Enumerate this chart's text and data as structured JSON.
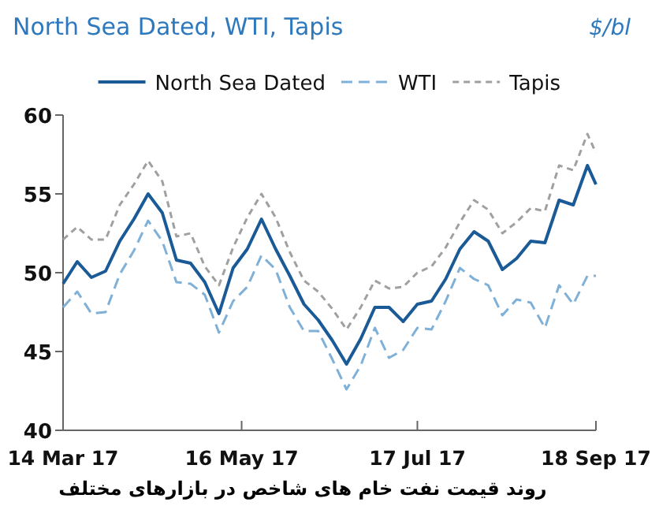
{
  "chart_data": {
    "type": "line",
    "title": "North Sea Dated, WTI, Tapis",
    "annotations": [
      "$/bl",
      "روند قیمت نفت خام های شاخص در بازارهای مختلف"
    ],
    "x": [
      "2017-03-14",
      "2017-03-19",
      "2017-03-24",
      "2017-03-29",
      "2017-04-03",
      "2017-04-08",
      "2017-04-13",
      "2017-04-18",
      "2017-04-23",
      "2017-04-28",
      "2017-05-03",
      "2017-05-08",
      "2017-05-13",
      "2017-05-18",
      "2017-05-23",
      "2017-05-28",
      "2017-06-02",
      "2017-06-07",
      "2017-06-12",
      "2017-06-17",
      "2017-06-22",
      "2017-06-27",
      "2017-07-02",
      "2017-07-07",
      "2017-07-12",
      "2017-07-17",
      "2017-07-22",
      "2017-07-27",
      "2017-08-01",
      "2017-08-06",
      "2017-08-11",
      "2017-08-16",
      "2017-08-21",
      "2017-08-26",
      "2017-08-31",
      "2017-09-05",
      "2017-09-10",
      "2017-09-15",
      "2017-09-18"
    ],
    "series": [
      {
        "name": "North Sea Dated",
        "color": "#1a5a96",
        "line_style": "solid",
        "values": [
          49.3,
          50.7,
          49.7,
          50.1,
          52.0,
          53.4,
          55.0,
          53.8,
          50.8,
          50.6,
          49.4,
          47.4,
          50.3,
          51.5,
          53.4,
          51.5,
          49.8,
          48.0,
          47.0,
          45.7,
          44.2,
          45.8,
          47.8,
          47.8,
          46.9,
          48.0,
          48.2,
          49.6,
          51.5,
          52.6,
          52.0,
          50.2,
          50.9,
          52.0,
          51.9,
          54.6,
          54.3,
          56.8,
          55.6
        ]
      },
      {
        "name": "WTI",
        "color": "#7fb0d8",
        "line_style": "dashed",
        "values": [
          47.8,
          48.8,
          47.4,
          47.5,
          49.9,
          51.4,
          53.3,
          52.0,
          49.4,
          49.3,
          48.6,
          46.2,
          48.2,
          49.1,
          51.1,
          50.2,
          47.8,
          46.3,
          46.3,
          44.5,
          42.6,
          44.1,
          46.5,
          44.6,
          45.1,
          46.5,
          46.4,
          48.2,
          50.3,
          49.6,
          49.2,
          47.3,
          48.3,
          48.1,
          46.5,
          49.2,
          48.0,
          49.8,
          49.8
        ]
      },
      {
        "name": "Tapis",
        "color": "#a0a0a0",
        "line_style": "dotted",
        "values": [
          52.1,
          52.9,
          52.1,
          52.1,
          54.3,
          55.6,
          57.1,
          55.8,
          52.3,
          52.5,
          50.4,
          49.2,
          51.6,
          53.5,
          55.0,
          53.5,
          51.3,
          49.5,
          48.8,
          47.7,
          46.4,
          47.8,
          49.5,
          49.0,
          49.1,
          50.0,
          50.4,
          51.6,
          53.2,
          54.6,
          54.0,
          52.5,
          53.2,
          54.1,
          53.9,
          56.8,
          56.5,
          58.8,
          57.6
        ]
      }
    ],
    "xlim": [
      "2017-03-14",
      "2017-09-18"
    ],
    "xticks": [
      {
        "value": "2017-03-14",
        "label": "14 Mar 17"
      },
      {
        "value": "2017-05-16",
        "label": "16 May 17"
      },
      {
        "value": "2017-07-17",
        "label": "17 Jul 17"
      },
      {
        "value": "2017-09-18",
        "label": "18 Sep 17"
      }
    ],
    "ylim": [
      40,
      60
    ],
    "yticks": [
      40,
      45,
      50,
      55,
      60
    ],
    "grid": false,
    "legend": "top"
  }
}
